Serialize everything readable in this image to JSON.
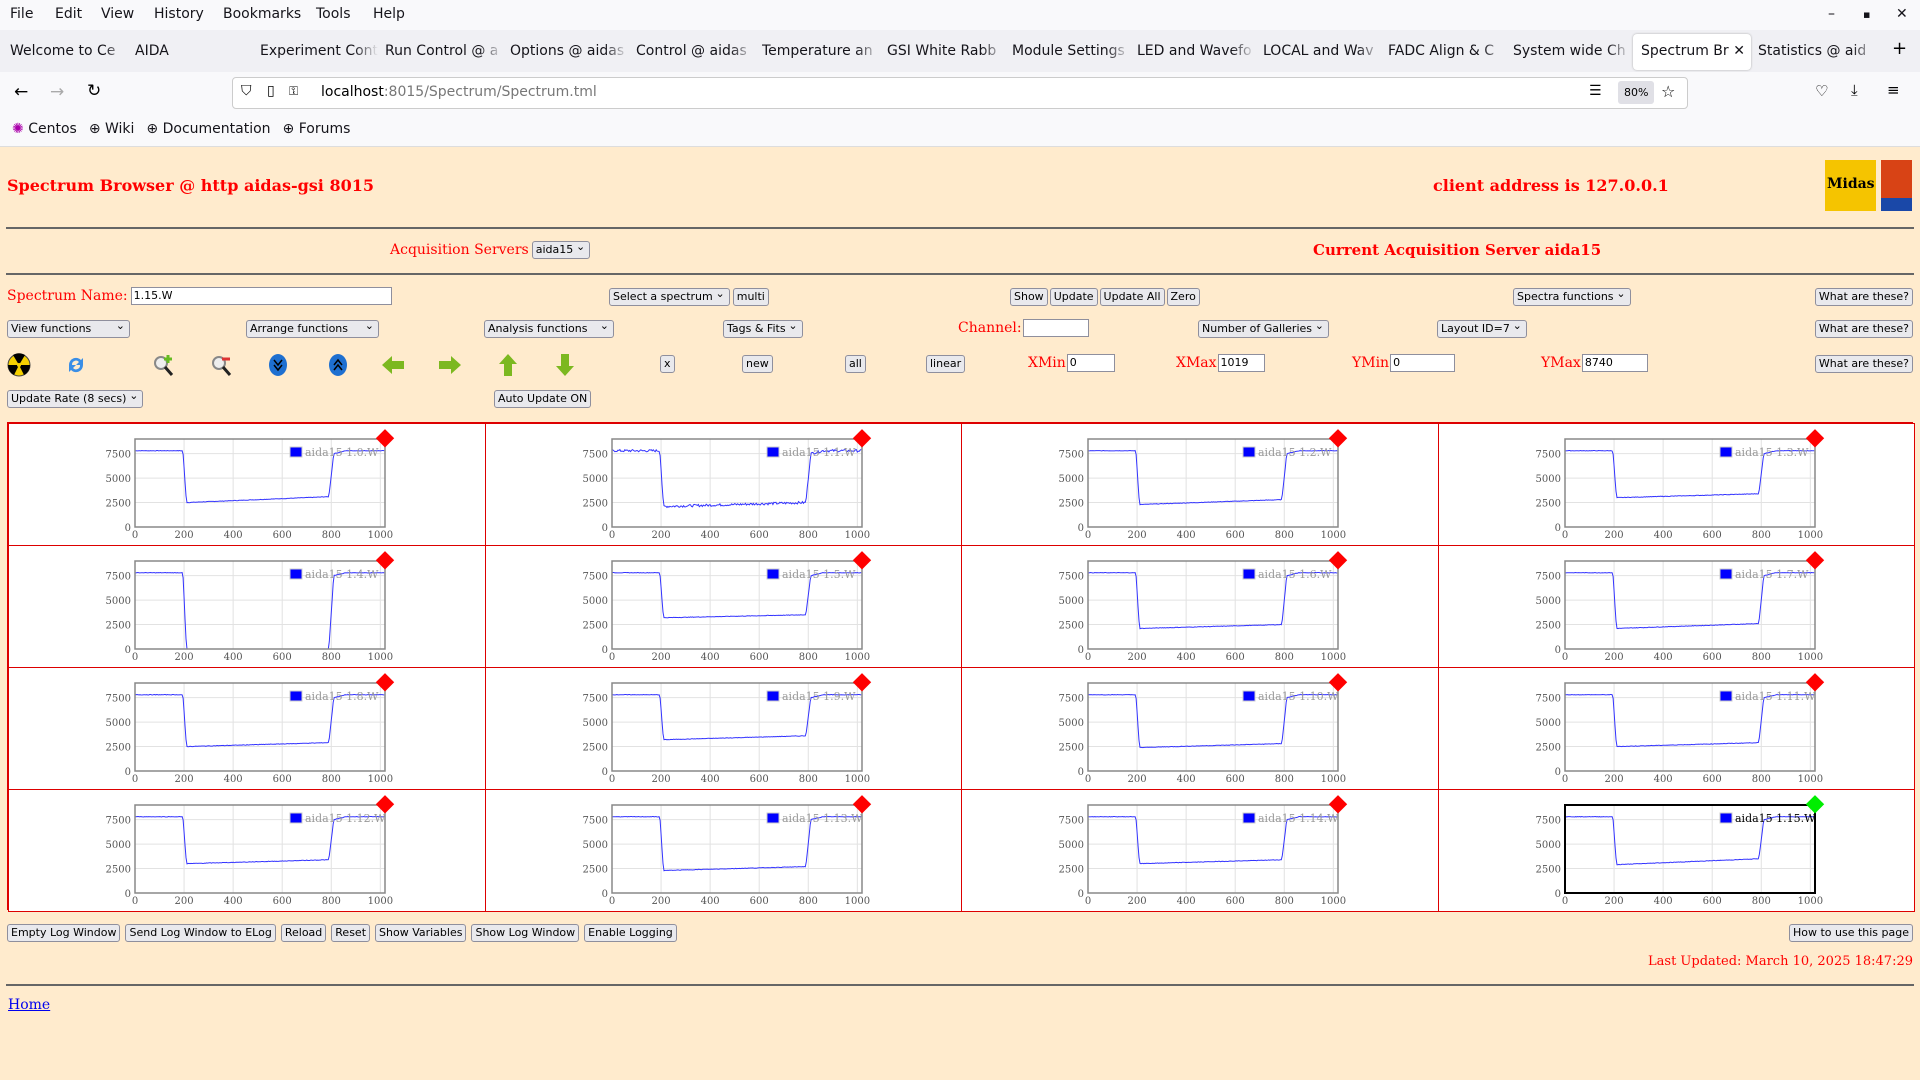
{
  "browser": {
    "menu": [
      "File",
      "Edit",
      "View",
      "History",
      "Bookmarks",
      "Tools",
      "Help"
    ],
    "tabs": [
      "Welcome to Ce",
      "AIDA",
      "Experiment Cont",
      "Run Control @ a",
      "Options @ aidas",
      "Control @ aidas",
      "Temperature an",
      "GSI White Rabb",
      "Module Settings",
      "LED and Wavefo",
      "LOCAL and Wav",
      "FADC Align & C",
      "System wide Ch",
      "Spectrum Bro",
      "Statistics @ aid"
    ],
    "active_tab": 13,
    "url_host": "localhost",
    "url_path": ":8015/Spectrum/Spectrum.tml",
    "zoom": "80%",
    "bookmarks": [
      "Centos",
      "Wiki",
      "Documentation",
      "Forums"
    ]
  },
  "header": {
    "title": "Spectrum Browser @ http aidas-gsi 8015",
    "client": "client address is 127.0.0.1",
    "logo": "Midas"
  },
  "acq": {
    "label": "Acquisition Servers",
    "server": "aida15",
    "current": "Current Acquisition Server aida15"
  },
  "controls": {
    "spectrum_name_label": "Spectrum Name:",
    "spectrum_name": "1.15.W",
    "select_spectrum": "Select a spectrum",
    "multi": "multi",
    "show": "Show",
    "update": "Update",
    "update_all": "Update All",
    "zero": "Zero",
    "spectra_functions": "Spectra functions",
    "what": "What are these?",
    "view_functions": "View functions",
    "arrange_functions": "Arrange functions",
    "analysis_functions": "Analysis functions",
    "tags_fits": "Tags & Fits",
    "channel_label": "Channel:",
    "channel": "",
    "galleries": "Number of Galleries",
    "layout": "Layout ID=7",
    "x": "x",
    "new": "new",
    "all": "all",
    "linear": "linear",
    "xmin_label": "XMin",
    "xmin": "0",
    "xmax_label": "XMax",
    "xmax": "1019",
    "ymin_label": "YMin",
    "ymin": "0",
    "ymax_label": "YMax",
    "ymax": "8740",
    "update_rate": "Update Rate (8 secs)",
    "auto_update": "Auto Update ON"
  },
  "galleries": {
    "x_ticks": [
      0,
      200,
      400,
      600,
      800,
      1000
    ],
    "y_ticks": [
      0,
      2500,
      5000,
      7500
    ],
    "x_range": [
      0,
      1019
    ],
    "y_range": [
      0,
      9000
    ],
    "items": [
      {
        "name": "aida15 1.0.W",
        "low": [
          2500,
          3100
        ],
        "status": "red"
      },
      {
        "name": "aida15 1.1.W",
        "low": [
          2100,
          2500
        ],
        "status": "red"
      },
      {
        "name": "aida15 1.2.W",
        "low": [
          2300,
          2800
        ],
        "status": "red"
      },
      {
        "name": "aida15 1.3.W",
        "low": [
          3000,
          3400
        ],
        "status": "red"
      },
      {
        "name": "aida15 1.4.W",
        "low": [
          0,
          0
        ],
        "status": "red"
      },
      {
        "name": "aida15 1.5.W",
        "low": [
          3200,
          3500
        ],
        "status": "red"
      },
      {
        "name": "aida15 1.6.W",
        "low": [
          2100,
          2500
        ],
        "status": "red"
      },
      {
        "name": "aida15 1.7.W",
        "low": [
          2100,
          2600
        ],
        "status": "red"
      },
      {
        "name": "aida15 1.8.W",
        "low": [
          2500,
          2900
        ],
        "status": "red"
      },
      {
        "name": "aida15 1.9.W",
        "low": [
          3200,
          3600
        ],
        "status": "red"
      },
      {
        "name": "aida15 1.10.W",
        "low": [
          2400,
          2800
        ],
        "status": "red"
      },
      {
        "name": "aida15 1.11.W",
        "low": [
          2500,
          2900
        ],
        "status": "red"
      },
      {
        "name": "aida15 1.12.W",
        "low": [
          3000,
          3400
        ],
        "status": "red"
      },
      {
        "name": "aida15 1.13.W",
        "low": [
          2300,
          2700
        ],
        "status": "red"
      },
      {
        "name": "aida15 1.14.W",
        "low": [
          3000,
          3400
        ],
        "status": "red"
      },
      {
        "name": "aida15 1.15.W",
        "low": [
          2900,
          3500
        ],
        "status": "green",
        "selected": true
      }
    ]
  },
  "footer": {
    "buttons": [
      "Empty Log Window",
      "Send Log Window to ELog",
      "Reload",
      "Reset",
      "Show Variables",
      "Show Log Window",
      "Enable Logging"
    ],
    "how": "How to use this page",
    "last_updated": "Last Updated: March 10, 2025 18:47:29",
    "home": "Home"
  },
  "colors": {
    "accent": "#ff0000",
    "page_bg": "#ffebcd",
    "series": "#0000ff",
    "ok": "#00ee00"
  }
}
